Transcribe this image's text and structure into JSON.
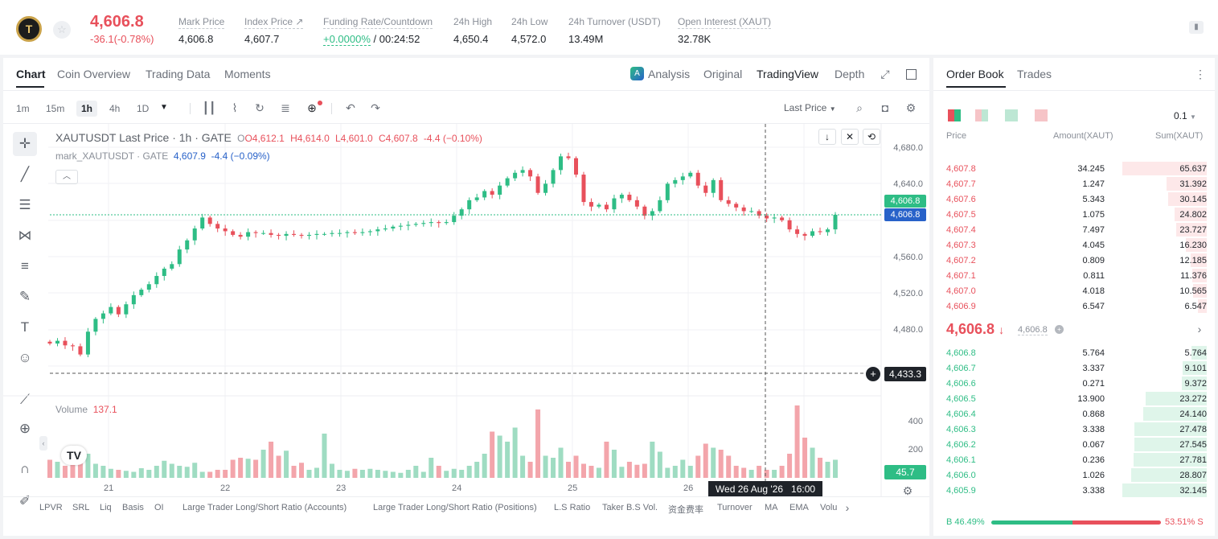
{
  "header": {
    "logo_text": "T",
    "star_icon": "☆",
    "last_price": "4,606.8",
    "change": "-36.1(-0.78%)",
    "stats": [
      {
        "label": "Mark Price",
        "value": "4,606.8"
      },
      {
        "label": "Index Price ↗",
        "value": "4,607.7"
      },
      {
        "label": "Funding Rate/Countdown",
        "value_green": "+0.0000%",
        "value": " / 00:24:52"
      },
      {
        "label": "24h High",
        "value": "4,650.4"
      },
      {
        "label": "24h Low",
        "value": "4,572.0"
      },
      {
        "label": "24h Turnover (USDT)",
        "value": "13.49M"
      },
      {
        "label": "Open Interest (XAUT)",
        "value": "32.78K"
      }
    ]
  },
  "chart_tabs": [
    "Chart",
    "Coin Overview",
    "Trading Data",
    "Moments"
  ],
  "view_tabs": [
    "Analysis",
    "Original",
    "TradingView",
    "Depth"
  ],
  "timeframes": [
    "1m",
    "15m",
    "1h",
    "4h",
    "1D"
  ],
  "price_type": "Last Price",
  "legend": {
    "symbol": "XAUTUSDT Last Price · 1h · GATE",
    "o": "O4,612.1",
    "h": "H4,614.0",
    "l": "L4,601.0",
    "c": "C4,607.8",
    "chg": "-4.4 (−0.10%)",
    "mark_name": "mark_XAUTUSDT · GATE",
    "mark_val": "4,607.9",
    "mark_chg": "-4.4 (−0.09%)"
  },
  "volume_legend": {
    "label": "Volume",
    "value": "137.1"
  },
  "price_tags": {
    "last": "4,606.8",
    "mark": "4,606.8",
    "cross": "4,433.3",
    "volume": "45.7"
  },
  "crosshair_time": "Wed 26 Aug '26   16:00",
  "indicators": [
    "LPVR",
    "SRL",
    "Liq",
    "Basis",
    "OI",
    "Large Trader Long/Short Ratio (Accounts)",
    "Large Trader Long/Short Ratio (Positions)",
    "L.S Ratio",
    "Taker B.S Vol.",
    "资金费率",
    "Turnover",
    "MA",
    "EMA",
    "Volu"
  ],
  "colors": {
    "up": "#2ebd85",
    "down": "#e8505b",
    "accent": "#1f2329"
  },
  "chart_data": {
    "type": "candlestick",
    "title": "XAUTUSDT Last Price · 1h · GATE",
    "x_ticks": [
      "21",
      "22",
      "23",
      "24",
      "25",
      "26"
    ],
    "y_ticks": [
      "4,680.0",
      "4,640.0",
      "4,600.0",
      "4,560.0",
      "4,520.0",
      "4,480.0",
      "4,440.0"
    ],
    "volume_ticks": [
      "400",
      "200"
    ],
    "ylim": [
      4425,
      4690
    ],
    "vol_ylim": [
      0,
      520
    ],
    "close_path": [
      4465,
      4468,
      4463,
      4462,
      4453,
      4478,
      4492,
      4498,
      4505,
      4497,
      4508,
      4518,
      4524,
      4530,
      4539,
      4547,
      4552,
      4568,
      4578,
      4591,
      4603,
      4596,
      4591,
      4588,
      4584,
      4582,
      4587,
      4586,
      4586,
      4584,
      4583,
      4585,
      4584,
      4583,
      4584,
      4585,
      4585,
      4586,
      4586,
      4587,
      4586,
      4587,
      4588,
      4590,
      4591,
      4593,
      4594,
      4595,
      4596,
      4597,
      4598,
      4597,
      4598,
      4605,
      4612,
      4622,
      4625,
      4632,
      4628,
      4638,
      4646,
      4652,
      4655,
      4648,
      4630,
      4640,
      4655,
      4670,
      4668,
      4650,
      4620,
      4615,
      4617,
      4612,
      4624,
      4628,
      4622,
      4615,
      4605,
      4610,
      4622,
      4640,
      4644,
      4648,
      4652,
      4638,
      4630,
      4644,
      4622,
      4618,
      4614,
      4610,
      4610,
      4605,
      4602,
      4603,
      4600,
      4590,
      4585,
      4583,
      4588,
      4587,
      4590,
      4606
    ],
    "volumes": [
      90,
      80,
      60,
      95,
      150,
      120,
      70,
      60,
      45,
      40,
      35,
      30,
      48,
      40,
      60,
      85,
      70,
      60,
      55,
      75,
      30,
      30,
      40,
      40,
      90,
      100,
      95,
      90,
      140,
      180,
      110,
      135,
      60,
      75,
      40,
      50,
      220,
      70,
      40,
      35,
      45,
      40,
      45,
      40,
      35,
      30,
      25,
      40,
      60,
      30,
      100,
      60,
      35,
      45,
      40,
      60,
      80,
      120,
      230,
      210,
      180,
      250,
      110,
      80,
      340,
      110,
      100,
      150,
      80,
      110,
      70,
      60,
      50,
      180,
      140,
      55,
      80,
      65,
      70,
      180,
      130,
      50,
      60,
      90,
      60,
      110,
      170,
      150,
      140,
      110,
      60,
      50,
      40,
      60,
      40,
      40,
      60,
      120,
      360,
      200,
      150,
      100,
      80,
      90
    ]
  }
}
